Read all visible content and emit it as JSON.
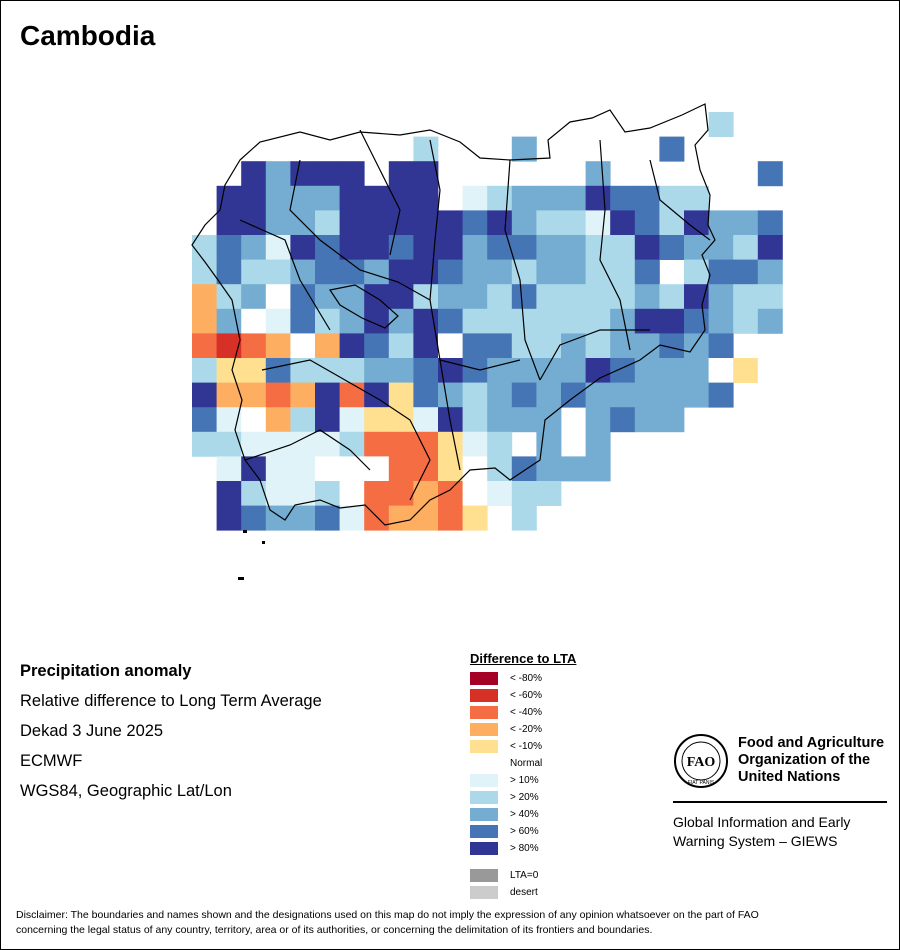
{
  "title": "Cambodia",
  "info": {
    "heading": "Precipitation anomaly",
    "line1": "Relative difference to Long Term Average",
    "line2": "Dekad 3 June 2025",
    "line3": "ECMWF",
    "line4": "WGS84, Geographic Lat/Lon"
  },
  "legend": {
    "title": "Difference to LTA",
    "items": [
      {
        "label": "< -80%",
        "color": "#a50026"
      },
      {
        "label": "< -60%",
        "color": "#d73027"
      },
      {
        "label": "< -40%",
        "color": "#f46d43"
      },
      {
        "label": "< -20%",
        "color": "#fdae61"
      },
      {
        "label": "< -10%",
        "color": "#fee090"
      },
      {
        "label": "Normal",
        "color": "#ffffff"
      },
      {
        "label": "> 10%",
        "color": "#e0f3f8"
      },
      {
        "label": "> 20%",
        "color": "#abd9e9"
      },
      {
        "label": "> 40%",
        "color": "#74add1"
      },
      {
        "label": "> 60%",
        "color": "#4575b4"
      },
      {
        "label": "> 80%",
        "color": "#313695"
      }
    ],
    "extra": [
      {
        "label": "LTA=0",
        "color": "#999999"
      },
      {
        "label": "desert",
        "color": "#cccccc"
      }
    ]
  },
  "map_grid": {
    "classes": [
      "< -80%",
      "< -60%",
      "< -40%",
      "< -20%",
      "< -10%",
      "Normal",
      "> 10%",
      "> 20%",
      "> 40%",
      "> 60%",
      "> 80%"
    ],
    "rows": [
      ".....................7..",
      ".........7...8.....9....",
      "..A8AAA.AA......8......9",
      ".AA888AAAA.67888A9977...",
      ".AA887AAAAA9A8776A97A889",
      "7986A9AA9AA8998877A9887A",
      "79778998AA988788779.7998",
      "3785988AA78879777787A877",
      "3856978A8A97777778AA9878",
      "212353A97A599778788989..",
      "7449777889A98888A9888545",
      "A3323A2A49878989888889..",
      "96537A6446A7888.8988....",
      "7766667222467.8.8.......",
      ".6A66555224579888.......",
      ".A7667522325677.........",
      ".A9889623324.7.........."
    ]
  },
  "fao": {
    "logo_text": "FAO",
    "logo_motto": "FIAT PANIS",
    "name_line1": "Food and Agriculture",
    "name_line2": "Organization of the",
    "name_line3": "United Nations",
    "giews_line1": "Global Information and Early",
    "giews_line2": "Warning System – GIEWS"
  },
  "disclaimer_line1": "Disclaimer: The boundaries and names shown and the designations used on this map do not imply the expression of any opinion whatsoever on the part of FAO",
  "disclaimer_line2": "concerning the legal status of any country, territory, area or of its authorities, or concerning the delimitation of its frontiers and boundaries."
}
